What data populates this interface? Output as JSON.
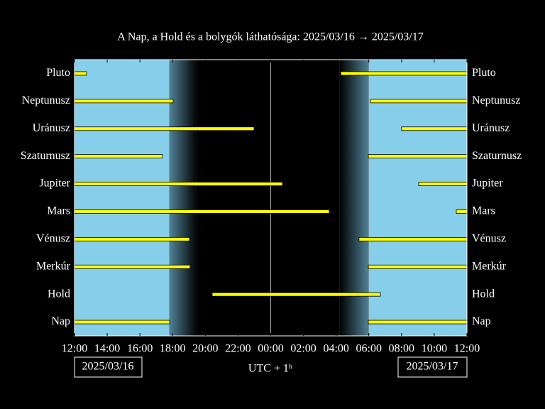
{
  "chart_data": {
    "type": "visibility",
    "title": "A Nap, a Hold és a bolygók láthatósága: 2025/03/16 → 2025/03/17",
    "xlabel": "UTC + 1ʰ",
    "date_start": "2025/03/16",
    "date_end": "2025/03/17",
    "xlim": [
      12,
      36
    ],
    "xticks": [
      {
        "value": 12,
        "label": "12:00"
      },
      {
        "value": 14,
        "label": "14:00"
      },
      {
        "value": 16,
        "label": "16:00"
      },
      {
        "value": 18,
        "label": "18:00"
      },
      {
        "value": 20,
        "label": "20:00"
      },
      {
        "value": 22,
        "label": "22:00"
      },
      {
        "value": 24,
        "label": "00:00"
      },
      {
        "value": 26,
        "label": "02:00"
      },
      {
        "value": 28,
        "label": "04:00"
      },
      {
        "value": 30,
        "label": "06:00"
      },
      {
        "value": 32,
        "label": "08:00"
      },
      {
        "value": 34,
        "label": "10:00"
      },
      {
        "value": 36,
        "label": "12:00"
      }
    ],
    "twilight": [
      [
        17.82,
        19.5
      ],
      [
        28.2,
        29.97
      ]
    ],
    "midnight": 24,
    "day_color": "#87ceeb",
    "bar_color": "#ffff00",
    "series": [
      {
        "name": "Pluto",
        "intervals": [
          [
            12,
            12.74
          ],
          [
            28.28,
            36
          ]
        ]
      },
      {
        "name": "Neptunusz",
        "intervals": [
          [
            12,
            18.03
          ],
          [
            30.1,
            36
          ]
        ]
      },
      {
        "name": "Uránusz",
        "intervals": [
          [
            12,
            22.98
          ],
          [
            32.0,
            36
          ]
        ]
      },
      {
        "name": "Szaturnusz",
        "intervals": [
          [
            12,
            17.38
          ],
          [
            29.97,
            36
          ]
        ]
      },
      {
        "name": "Jupiter",
        "intervals": [
          [
            12,
            24.72
          ],
          [
            33.05,
            36
          ]
        ]
      },
      {
        "name": "Mars",
        "intervals": [
          [
            12,
            27.58
          ],
          [
            35.35,
            36
          ]
        ]
      },
      {
        "name": "Vénusz",
        "intervals": [
          [
            12,
            19.03
          ],
          [
            29.4,
            36
          ]
        ]
      },
      {
        "name": "Merkúr",
        "intervals": [
          [
            12,
            19.07
          ],
          [
            29.97,
            36
          ]
        ]
      },
      {
        "name": "Hold",
        "intervals": [
          [
            20.42,
            30.71
          ]
        ]
      },
      {
        "name": "Nap",
        "intervals": [
          [
            12,
            17.82
          ],
          [
            29.97,
            36
          ]
        ]
      }
    ]
  }
}
